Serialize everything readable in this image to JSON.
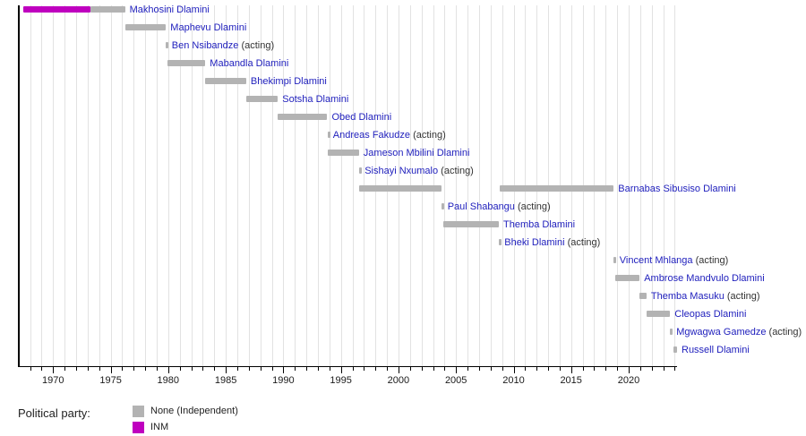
{
  "chart_data": {
    "type": "bar",
    "subtype": "horizontal-timeline-gantt",
    "title": "",
    "description_visible_text_only": true,
    "x_axis": {
      "domain": [
        1967.1,
        2024.2
      ],
      "major_ticks": [
        1970,
        1975,
        1980,
        1985,
        1990,
        1995,
        2000,
        2005,
        2010,
        2015,
        2020
      ],
      "major_tick_labels": [
        "1970",
        "1975",
        "1980",
        "1985",
        "1990",
        "1995",
        "2000",
        "2005",
        "2010",
        "2015",
        "2020"
      ],
      "minor_tick_start": 1968,
      "minor_tick_end": 2024,
      "minor_tick_interval": 1,
      "gridlines": true
    },
    "colors": {
      "none_independent": "#b3b3b3",
      "inm": "#bf00bf",
      "link_blue": "#2121bd",
      "acting_text": "#333333",
      "gridline": "#e2e2e2",
      "axis": "#000000"
    },
    "acting_suffix": " (acting)",
    "rows": [
      {
        "name": "Makhosini Dlamini",
        "acting": false,
        "segments": [
          {
            "party": "inm",
            "start": 1967.38,
            "end": 1973.28
          },
          {
            "party": "none_independent",
            "start": 1973.28,
            "end": 1976.25
          }
        ]
      },
      {
        "name": "Maphevu Dlamini",
        "acting": false,
        "segments": [
          {
            "party": "none_independent",
            "start": 1976.25,
            "end": 1979.8
          }
        ]
      },
      {
        "name": "Ben Nsibandze",
        "acting": true,
        "segments": [
          {
            "party": "none_independent",
            "start": 1979.8,
            "end": 1979.92
          }
        ]
      },
      {
        "name": "Mabandla Dlamini",
        "acting": false,
        "segments": [
          {
            "party": "none_independent",
            "start": 1979.92,
            "end": 1983.23
          }
        ]
      },
      {
        "name": "Bhekimpi Dlamini",
        "acting": false,
        "segments": [
          {
            "party": "none_independent",
            "start": 1983.23,
            "end": 1986.77
          }
        ]
      },
      {
        "name": "Sotsha Dlamini",
        "acting": false,
        "segments": [
          {
            "party": "none_independent",
            "start": 1986.77,
            "end": 1989.53
          }
        ]
      },
      {
        "name": "Obed Dlamini",
        "acting": false,
        "segments": [
          {
            "party": "none_independent",
            "start": 1989.53,
            "end": 1993.82
          }
        ]
      },
      {
        "name": "Andreas Fakudze",
        "acting": true,
        "segments": [
          {
            "party": "none_independent",
            "start": 1993.82,
            "end": 1993.92
          }
        ]
      },
      {
        "name": "Jameson Mbilini Dlamini",
        "acting": false,
        "segments": [
          {
            "party": "none_independent",
            "start": 1993.84,
            "end": 1996.57
          }
        ]
      },
      {
        "name": "Sishayi Nxumalo",
        "acting": true,
        "segments": [
          {
            "party": "none_independent",
            "start": 1996.57,
            "end": 1996.68
          }
        ]
      },
      {
        "name": "Barnabas Sibusiso Dlamini",
        "acting": false,
        "segments": [
          {
            "party": "none_independent",
            "start": 1996.57,
            "end": 2003.75
          },
          {
            "party": "none_independent",
            "start": 2008.8,
            "end": 2018.7
          }
        ]
      },
      {
        "name": "Paul Shabangu",
        "acting": true,
        "segments": [
          {
            "party": "none_independent",
            "start": 2003.75,
            "end": 2003.87
          }
        ]
      },
      {
        "name": "Themba Dlamini",
        "acting": false,
        "segments": [
          {
            "party": "none_independent",
            "start": 2003.87,
            "end": 2008.72
          }
        ]
      },
      {
        "name": "Bheki Dlamini",
        "acting": true,
        "segments": [
          {
            "party": "none_independent",
            "start": 2008.72,
            "end": 2008.82
          }
        ]
      },
      {
        "name": "Vincent Mhlanga",
        "acting": true,
        "segments": [
          {
            "party": "none_independent",
            "start": 2018.7,
            "end": 2018.82
          }
        ]
      },
      {
        "name": "Ambrose Mandvulo Dlamini",
        "acting": false,
        "segments": [
          {
            "party": "none_independent",
            "start": 2018.82,
            "end": 2020.95
          }
        ]
      },
      {
        "name": "Themba Masuku",
        "acting": true,
        "segments": [
          {
            "party": "none_independent",
            "start": 2020.95,
            "end": 2021.55
          }
        ]
      },
      {
        "name": "Cleopas Dlamini",
        "acting": false,
        "segments": [
          {
            "party": "none_independent",
            "start": 2021.55,
            "end": 2023.6
          }
        ]
      },
      {
        "name": "Mgwagwa Gamedze",
        "acting": true,
        "segments": [
          {
            "party": "none_independent",
            "start": 2023.6,
            "end": 2023.75
          }
        ]
      },
      {
        "name": "Russell Dlamini",
        "acting": false,
        "segments": [
          {
            "party": "none_independent",
            "start": 2023.85,
            "end": 2024.2
          }
        ]
      }
    ],
    "legend": {
      "title": "Political party:",
      "entries": [
        {
          "label": "None (Independent)",
          "color_key": "none_independent"
        },
        {
          "label": "INM",
          "color_key": "inm"
        }
      ]
    }
  }
}
